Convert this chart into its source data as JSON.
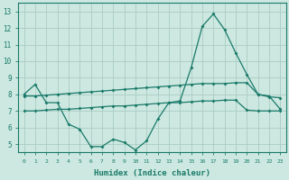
{
  "xlabel": "Humidex (Indice chaleur)",
  "bg_color": "#cce8e0",
  "grid_color": "#aaccc4",
  "line_color": "#1a7a6a",
  "xlim": [
    -0.5,
    23.5
  ],
  "ylim": [
    4.5,
    13.5
  ],
  "yticks": [
    5,
    6,
    7,
    8,
    9,
    10,
    11,
    12,
    13
  ],
  "xticks": [
    0,
    1,
    2,
    3,
    4,
    5,
    6,
    7,
    8,
    9,
    10,
    11,
    12,
    13,
    14,
    15,
    16,
    17,
    18,
    19,
    20,
    21,
    22,
    23
  ],
  "line1_y": [
    8.0,
    8.6,
    7.5,
    7.5,
    6.2,
    5.9,
    4.85,
    4.85,
    5.3,
    5.1,
    4.65,
    5.2,
    6.5,
    7.5,
    7.6,
    9.6,
    12.1,
    12.85,
    11.9,
    10.5,
    9.2,
    8.0,
    7.9,
    7.1
  ],
  "line2_y": [
    7.9,
    7.9,
    7.95,
    8.0,
    8.05,
    8.1,
    8.15,
    8.2,
    8.25,
    8.3,
    8.35,
    8.4,
    8.45,
    8.5,
    8.55,
    8.6,
    8.65,
    8.65,
    8.65,
    8.7,
    8.7,
    8.0,
    7.85,
    7.8
  ],
  "line3_y": [
    7.0,
    7.0,
    7.05,
    7.1,
    7.1,
    7.15,
    7.2,
    7.25,
    7.3,
    7.3,
    7.35,
    7.4,
    7.45,
    7.5,
    7.5,
    7.55,
    7.6,
    7.6,
    7.65,
    7.65,
    7.05,
    7.0,
    7.0,
    7.0
  ]
}
